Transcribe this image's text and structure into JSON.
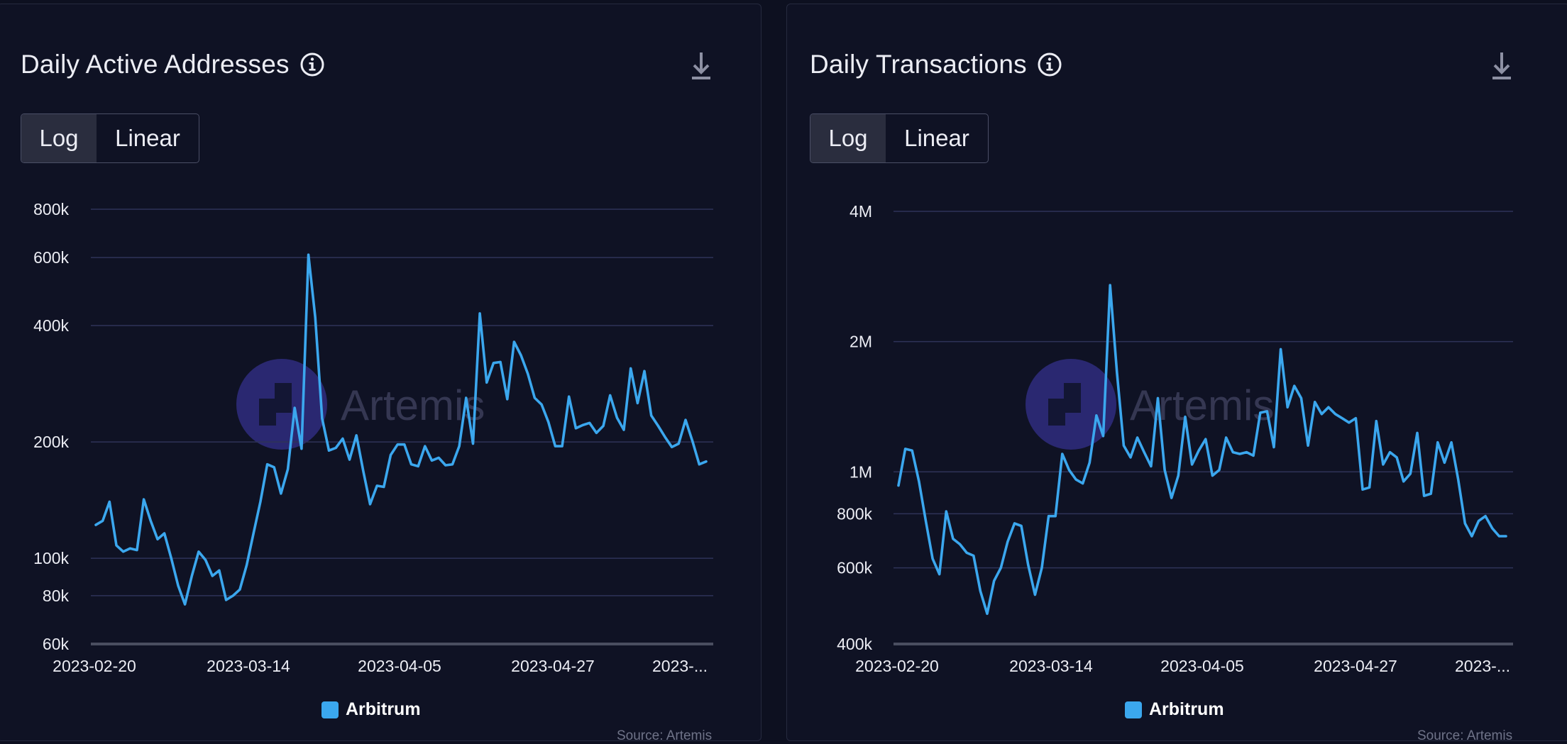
{
  "colors": {
    "line": "#3ba7ee",
    "grid": "#2f3358",
    "axis": "#4a4e60",
    "text": "#ecedf4",
    "watermark": "#2d2b7a"
  },
  "watermark": "Artemis",
  "panels": [
    {
      "title": "Daily Active Addresses",
      "toggle": {
        "log_label": "Log",
        "linear_label": "Linear",
        "selected": "Log"
      },
      "legend": "Arbitrum",
      "source": "Source: Artemis"
    },
    {
      "title": "Daily Transactions",
      "toggle": {
        "log_label": "Log",
        "linear_label": "Linear",
        "selected": "Log"
      },
      "legend": "Arbitrum",
      "source": "Source: Artemis"
    }
  ],
  "chart_data": [
    {
      "type": "line",
      "y_scale": "log",
      "ylim": [
        60000,
        800000
      ],
      "yticks": [
        {
          "value": 800000,
          "label": "800k"
        },
        {
          "value": 600000,
          "label": "600k"
        },
        {
          "value": 400000,
          "label": "400k"
        },
        {
          "value": 200000,
          "label": "200k"
        },
        {
          "value": 100000,
          "label": "100k"
        },
        {
          "value": 80000,
          "label": "80k"
        },
        {
          "value": 60000,
          "label": "60k"
        }
      ],
      "xtick_labels": [
        "2023-02-20",
        "2023-03-14",
        "2023-04-05",
        "2023-04-27",
        "2023-..."
      ],
      "x_start": "2023-02-20",
      "series": [
        {
          "name": "Arbitrum",
          "values": [
            122000,
            125000,
            140000,
            108000,
            104000,
            106000,
            105000,
            142000,
            125000,
            112000,
            116000,
            100000,
            85000,
            76000,
            90000,
            104000,
            99000,
            90000,
            93000,
            78000,
            80000,
            83000,
            96000,
            116000,
            140000,
            175000,
            172000,
            147000,
            170000,
            245000,
            192000,
            610000,
            420000,
            230000,
            190000,
            193000,
            204000,
            180000,
            208000,
            168000,
            138000,
            154000,
            153000,
            185000,
            197000,
            197000,
            175000,
            173000,
            195000,
            179000,
            182000,
            174000,
            175000,
            195000,
            260000,
            198000,
            430000,
            285000,
            320000,
            322000,
            258000,
            363000,
            335000,
            300000,
            260000,
            250000,
            225000,
            195000,
            195000,
            262000,
            217000,
            221000,
            224000,
            211000,
            220000,
            264000,
            231000,
            215000,
            310000,
            252000,
            305000,
            234000,
            220000,
            206000,
            194000,
            198000,
            228000,
            201000,
            175000,
            178000
          ]
        }
      ]
    },
    {
      "type": "line",
      "y_scale": "log",
      "ylim": [
        400000,
        4000000
      ],
      "yticks": [
        {
          "value": 4000000,
          "label": "4M"
        },
        {
          "value": 2000000,
          "label": "2M"
        },
        {
          "value": 1000000,
          "label": "1M"
        },
        {
          "value": 800000,
          "label": "800k"
        },
        {
          "value": 600000,
          "label": "600k"
        },
        {
          "value": 400000,
          "label": "400k"
        }
      ],
      "xtick_labels": [
        "2023-02-20",
        "2023-03-14",
        "2023-04-05",
        "2023-04-27",
        "2023-..."
      ],
      "x_start": "2023-02-20",
      "series": [
        {
          "name": "Arbitrum",
          "values": [
            930000,
            1130000,
            1120000,
            950000,
            770000,
            630000,
            580000,
            810000,
            700000,
            680000,
            650000,
            640000,
            530000,
            470000,
            560000,
            600000,
            690000,
            760000,
            750000,
            610000,
            520000,
            600000,
            790000,
            790000,
            1100000,
            1010000,
            960000,
            940000,
            1050000,
            1350000,
            1210000,
            2700000,
            1700000,
            1150000,
            1080000,
            1200000,
            1110000,
            1030000,
            1480000,
            1010000,
            870000,
            980000,
            1340000,
            1040000,
            1120000,
            1190000,
            980000,
            1010000,
            1200000,
            1110000,
            1100000,
            1110000,
            1090000,
            1370000,
            1380000,
            1140000,
            1920000,
            1410000,
            1580000,
            1480000,
            1150000,
            1450000,
            1360000,
            1410000,
            1360000,
            1330000,
            1300000,
            1330000,
            910000,
            920000,
            1310000,
            1040000,
            1110000,
            1080000,
            950000,
            990000,
            1230000,
            880000,
            890000,
            1170000,
            1050000,
            1170000,
            960000,
            760000,
            710000,
            770000,
            790000,
            740000,
            710000,
            710000
          ]
        }
      ]
    }
  ]
}
